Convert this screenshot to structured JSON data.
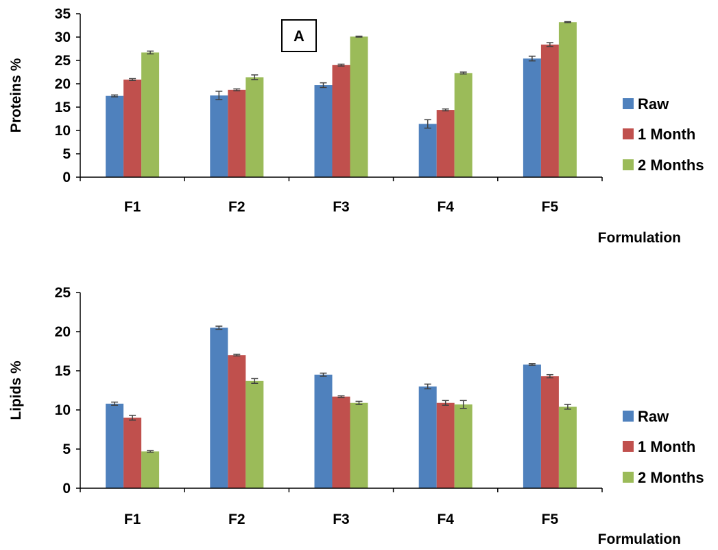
{
  "chart_data": [
    {
      "type": "bar",
      "panel_label": "A",
      "categories": [
        "F1",
        "F2",
        "F3",
        "F4",
        "F5"
      ],
      "xlabel": "Formulation",
      "ylabel": "Proteins %",
      "ylim": [
        0,
        35
      ],
      "yticks": [
        0,
        5,
        10,
        15,
        20,
        25,
        30,
        35
      ],
      "grid": false,
      "legend": "right",
      "series": [
        {
          "name": "Raw",
          "color": "#4F81BD",
          "values": [
            17.4,
            17.5,
            19.7,
            11.4,
            25.4
          ],
          "errors": [
            0.2,
            0.9,
            0.5,
            0.9,
            0.5
          ]
        },
        {
          "name": "1 Month",
          "color": "#C0504D",
          "values": [
            20.9,
            18.7,
            24.0,
            14.4,
            28.4
          ],
          "errors": [
            0.2,
            0.2,
            0.2,
            0.2,
            0.4
          ]
        },
        {
          "name": "2 Months",
          "color": "#9BBB59",
          "values": [
            26.7,
            21.4,
            30.1,
            22.3,
            33.2
          ],
          "errors": [
            0.3,
            0.5,
            0.1,
            0.2,
            0.1
          ]
        }
      ]
    },
    {
      "type": "bar",
      "categories": [
        "F1",
        "F2",
        "F3",
        "F4",
        "F5"
      ],
      "xlabel": "Formulation",
      "ylabel": "Lipids %",
      "ylim": [
        0,
        25
      ],
      "yticks": [
        0,
        5,
        10,
        15,
        20,
        25
      ],
      "grid": false,
      "legend": "right",
      "series": [
        {
          "name": "Raw",
          "color": "#4F81BD",
          "values": [
            10.8,
            20.5,
            14.5,
            13.0,
            15.8
          ],
          "errors": [
            0.2,
            0.2,
            0.2,
            0.3,
            0.1
          ]
        },
        {
          "name": "1 Month",
          "color": "#C0504D",
          "values": [
            9.0,
            17.0,
            11.7,
            10.9,
            14.3
          ],
          "errors": [
            0.3,
            0.1,
            0.1,
            0.3,
            0.2
          ]
        },
        {
          "name": "2 Months",
          "color": "#9BBB59",
          "values": [
            4.7,
            13.7,
            10.9,
            10.7,
            10.4
          ],
          "errors": [
            0.1,
            0.3,
            0.2,
            0.5,
            0.3
          ]
        }
      ]
    }
  ]
}
